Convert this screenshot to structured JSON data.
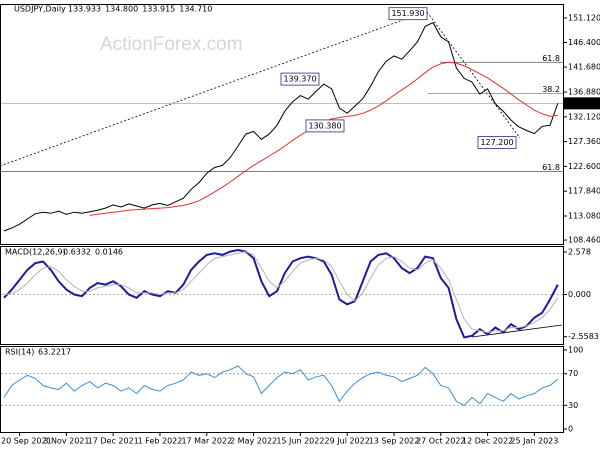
{
  "chart_data": [
    {
      "type": "line",
      "title": "USDJPY,Daily",
      "ohlc": [
        "133.933",
        "134.800",
        "133.915",
        "134.710"
      ],
      "watermark": "ActionForex.com",
      "categories": [
        null,
        null,
        "20 Sep 2021",
        null,
        null,
        null,
        null,
        null,
        "3 Nov 2021",
        null,
        null,
        null,
        null,
        null,
        "17 Dec 2021",
        null,
        null,
        null,
        null,
        null,
        "1 Feb 2022",
        null,
        null,
        null,
        null,
        null,
        "17 Mar 2022",
        null,
        null,
        null,
        null,
        null,
        "2 May 2022",
        null,
        null,
        null,
        null,
        null,
        "15 Jun 2022",
        null,
        null,
        null,
        null,
        null,
        "29 Jul 2022",
        null,
        null,
        null,
        null,
        null,
        "13 Sep 2022",
        null,
        null,
        null,
        null,
        null,
        "27 Oct 2022",
        null,
        null,
        null,
        null,
        null,
        "12 Dec 2022",
        null,
        null,
        null,
        null,
        null,
        "25 Jan 2023",
        null,
        null,
        null
      ],
      "series": [
        {
          "color": "#000000",
          "values": [
            110.2,
            110.8,
            111.5,
            112.5,
            113.5,
            113.8,
            113.6,
            114,
            113.4,
            113.8,
            113.6,
            113.9,
            114.2,
            114.6,
            115.2,
            114.8,
            115.4,
            115,
            114.6,
            115.2,
            115.5,
            115.1,
            115.8,
            116.5,
            118.2,
            119.5,
            121.3,
            122.4,
            122.8,
            124.3,
            126.5,
            128.8,
            129.3,
            127.8,
            128.8,
            130.5,
            133.2,
            135,
            136.2,
            135.5,
            137,
            138.4,
            137.5,
            133.8,
            132.8,
            134.2,
            135.6,
            138,
            140.8,
            142.8,
            143.8,
            143.2,
            144.8,
            146.5,
            149.5,
            150.2,
            147.5,
            146.5,
            141.5,
            139.5,
            138.8,
            136.5,
            137.5,
            134.6,
            133.2,
            131.5,
            130.2,
            129.5,
            128.9,
            130.3,
            130.5,
            134.7
          ]
        },
        {
          "color": "#e8302a",
          "values": [
            null,
            null,
            null,
            null,
            null,
            null,
            null,
            null,
            null,
            null,
            null,
            113.2,
            113.4,
            113.6,
            113.8,
            114,
            114.2,
            114.3,
            114.4,
            114.5,
            114.6,
            114.7,
            114.9,
            115.1,
            115.5,
            116,
            116.8,
            117.7,
            118.6,
            119.6,
            120.7,
            121.8,
            122.8,
            123.7,
            124.6,
            125.5,
            126.5,
            127.6,
            128.6,
            129.5,
            130.3,
            131.1,
            131.7,
            132,
            132.2,
            132.4,
            132.8,
            133.4,
            134.2,
            135.2,
            136.3,
            137.3,
            138.3,
            139.4,
            140.6,
            141.7,
            142.3,
            142.6,
            142.4,
            141.9,
            141.2,
            140.4,
            139.6,
            138.6,
            137.6,
            136.5,
            135.4,
            134.4,
            133.4,
            132.7,
            132.2,
            132.4
          ]
        }
      ],
      "ylim": [
        107.7,
        153.6
      ],
      "yticks": [
        {
          "value": 151.12,
          "label": "151.120"
        },
        {
          "value": 146.4,
          "label": "146.400"
        },
        {
          "value": 141.68,
          "label": "141.680"
        },
        {
          "value": 136.88,
          "label": "136.880"
        },
        {
          "value": 132.12,
          "label": "132.120"
        },
        {
          "value": 127.36,
          "label": "127.360"
        },
        {
          "value": 122.6,
          "label": "122.600"
        },
        {
          "value": 117.84,
          "label": "117.840"
        },
        {
          "value": 113.08,
          "label": "113.080"
        },
        {
          "value": 108.46,
          "label": "108.460"
        }
      ],
      "last_price": {
        "value": 134.71,
        "label": "134.710"
      },
      "annotations": [
        {
          "value": 151.93,
          "label": "151.930"
        },
        {
          "value": 139.37,
          "label": "139.370"
        },
        {
          "value": 130.38,
          "label": "130.380"
        },
        {
          "value": 127.2,
          "label": "127.200"
        }
      ],
      "fib_levels": [
        {
          "value": 142.6,
          "label": "61.8"
        },
        {
          "value": 136.6,
          "label": "38.2"
        },
        {
          "value": 121.6,
          "label": "61.8"
        }
      ]
    },
    {
      "type": "line",
      "title": "MACD(12,26,9)",
      "readings": [
        0.6332,
        0.0146
      ],
      "series": [
        {
          "color": "#1c1c9c",
          "values": [
            -0.2,
            0.3,
            0.9,
            1.5,
            1.9,
            2.0,
            1.5,
            0.8,
            0.3,
            0.0,
            -0.1,
            0.4,
            0.7,
            0.6,
            0.8,
            0.5,
            0.0,
            -0.2,
            0.2,
            0.0,
            -0.1,
            0.2,
            0.1,
            0.6,
            1.5,
            2.0,
            2.4,
            2.5,
            2.4,
            2.6,
            2.7,
            2.6,
            2.2,
            0.8,
            -0.1,
            0.2,
            1.3,
            2.0,
            2.2,
            2.3,
            2.2,
            2.0,
            1.2,
            -0.3,
            -0.6,
            -0.4,
            0.8,
            2.0,
            2.4,
            2.5,
            2.2,
            1.6,
            1.3,
            1.6,
            2.3,
            2.2,
            1.0,
            0.4,
            -1.5,
            -2.6,
            -2.5,
            -2.1,
            -2.4,
            -2.0,
            -2.3,
            -1.8,
            -2.1,
            -1.9,
            -1.4,
            -1.1,
            -0.3,
            0.6
          ]
        },
        {
          "color": "#b4b4b4",
          "values": [
            0,
            0.05,
            0.3,
            0.7,
            1.2,
            1.6,
            1.7,
            1.4,
            0.9,
            0.5,
            0.2,
            0.2,
            0.4,
            0.5,
            0.6,
            0.6,
            0.4,
            0.1,
            0.1,
            0.1,
            0.0,
            0.1,
            0.1,
            0.3,
            0.8,
            1.3,
            1.8,
            2.2,
            2.3,
            2.4,
            2.5,
            2.6,
            2.4,
            1.6,
            0.8,
            0.4,
            0.8,
            1.4,
            1.9,
            2.1,
            2.2,
            2.1,
            1.7,
            0.8,
            0.0,
            -0.4,
            0.1,
            1.0,
            1.8,
            2.2,
            2.3,
            2.0,
            1.6,
            1.5,
            1.9,
            2.1,
            1.6,
            0.9,
            -0.3,
            -1.5,
            -2.1,
            -2.2,
            -2.3,
            -2.2,
            -2.2,
            -2.0,
            -2.0,
            -1.9,
            -1.7,
            -1.4,
            -0.9,
            -0.2
          ]
        }
      ],
      "ylim": [
        -3.0,
        2.88
      ],
      "yticks": [
        2.578,
        {
          "value": 0,
          "label": "0.000"
        },
        -2.5583
      ],
      "levels": [
        0
      ]
    },
    {
      "type": "line",
      "title": "RSI(14)",
      "readings": [
        63.2217
      ],
      "series": [
        {
          "color": "#3a8fd8",
          "values": [
            40,
            55,
            62,
            68,
            64,
            55,
            52,
            50,
            58,
            48,
            55,
            60,
            52,
            58,
            55,
            48,
            52,
            45,
            55,
            50,
            48,
            55,
            58,
            62,
            72,
            68,
            70,
            65,
            72,
            75,
            80,
            70,
            66,
            45,
            55,
            65,
            72,
            70,
            75,
            62,
            66,
            68,
            55,
            35,
            48,
            58,
            65,
            70,
            72,
            68,
            66,
            60,
            64,
            68,
            78,
            70,
            55,
            52,
            35,
            30,
            40,
            32,
            45,
            40,
            35,
            45,
            38,
            42,
            45,
            52,
            55,
            63
          ]
        }
      ],
      "ylim": [
        -3.75,
        103.75
      ],
      "yticks": [
        100,
        70,
        30,
        0
      ],
      "levels": [
        70,
        30
      ]
    }
  ]
}
